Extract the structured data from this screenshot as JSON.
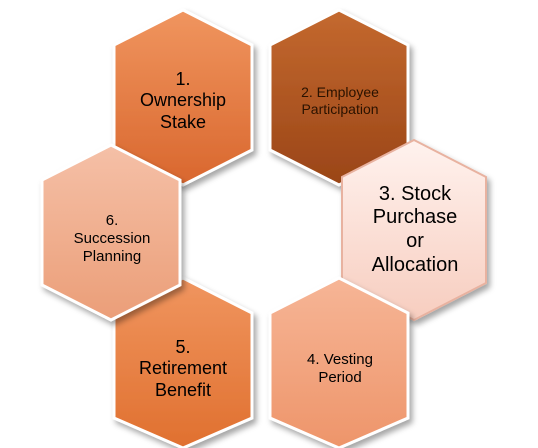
{
  "diagram": {
    "nodes": [
      {
        "id": "n1",
        "label": "1.\nOwnership\nStake",
        "fill_top": "#f0955f",
        "fill_bottom": "#d9672e",
        "stroke": "#ffffff"
      },
      {
        "id": "n2",
        "label": "2. Employee\nParticipation",
        "fill_top": "#c4692f",
        "fill_bottom": "#9a4517",
        "stroke": "#ffffff"
      },
      {
        "id": "n3",
        "label": "3. Stock\nPurchase\nor\nAllocation",
        "fill_top": "#fff2ee",
        "fill_bottom": "#f7cdbf",
        "stroke": "#e8b2a0"
      },
      {
        "id": "n4",
        "label": "4. Vesting\nPeriod",
        "fill_top": "#f6b596",
        "fill_bottom": "#ee956a",
        "stroke": "#ffffff"
      },
      {
        "id": "n5",
        "label": "5.\nRetirement\nBenefit",
        "fill_top": "#f0955f",
        "fill_bottom": "#e0702f",
        "stroke": "#ffffff"
      },
      {
        "id": "n6",
        "label": "6.\nSuccession\nPlanning",
        "fill_top": "#f5c0a7",
        "fill_bottom": "#eb9e78",
        "stroke": "#ffffff"
      }
    ]
  }
}
